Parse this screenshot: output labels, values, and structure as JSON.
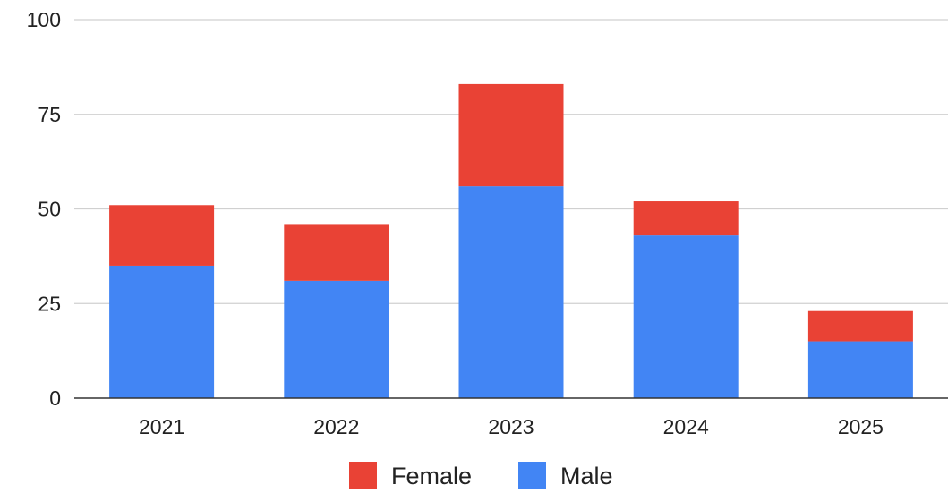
{
  "chart_data": {
    "type": "bar",
    "stacked": true,
    "categories": [
      "2021",
      "2022",
      "2023",
      "2024",
      "2025"
    ],
    "series": [
      {
        "name": "Male",
        "color": "#4285f4",
        "values": [
          35,
          31,
          56,
          43,
          15
        ]
      },
      {
        "name": "Female",
        "color": "#e94235",
        "values": [
          16,
          15,
          27,
          9,
          8
        ]
      }
    ],
    "ylim": [
      0,
      100
    ],
    "yticks": [
      "0",
      "25",
      "50",
      "75",
      "100"
    ],
    "grid": true,
    "legend": {
      "position": "bottom",
      "order": [
        "Female",
        "Male"
      ]
    }
  }
}
